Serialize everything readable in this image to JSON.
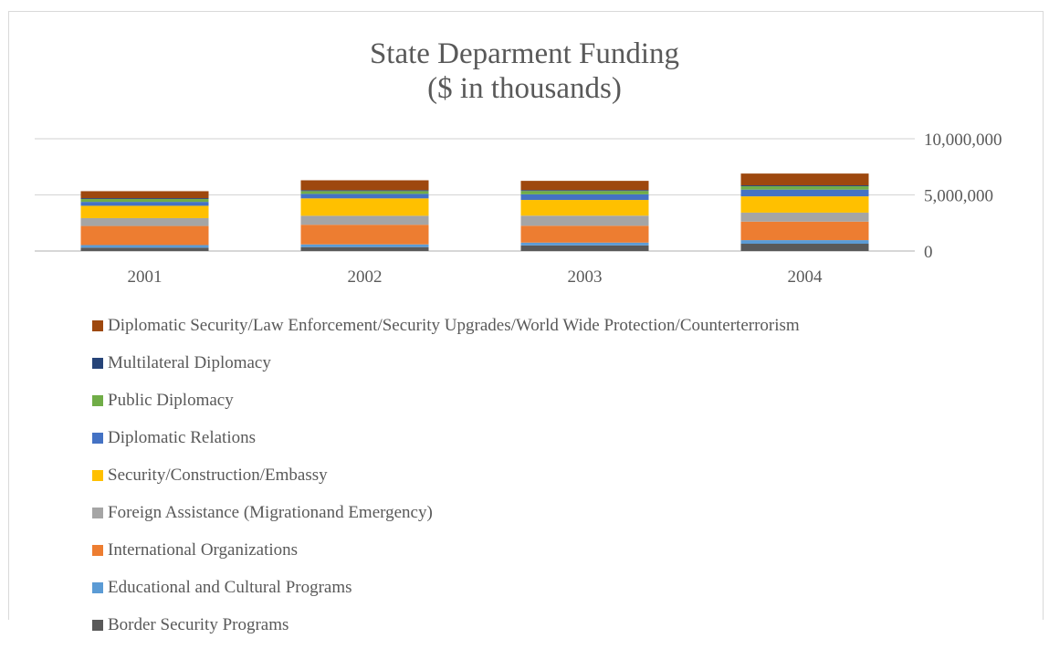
{
  "chart_data": {
    "type": "bar",
    "stacked": true,
    "title": [
      "State Deparment Funding",
      "($ in thousands)"
    ],
    "categories": [
      "2001",
      "2002",
      "2003",
      "2004"
    ],
    "y_axis_position": "right",
    "ylim": [
      0,
      10000000
    ],
    "yticks": [
      0,
      5000000,
      10000000
    ],
    "ytick_labels": [
      "0",
      "5,000,000",
      "10,000,000"
    ],
    "grid": true,
    "legend_position": "bottom",
    "series": [
      {
        "name": "Border Security Programs",
        "color": "#595959",
        "values": [
          300000,
          350000,
          500000,
          650000
        ]
      },
      {
        "name": "Educational and Cultural Programs",
        "color": "#5b9bd5",
        "values": [
          230000,
          240000,
          250000,
          320000
        ]
      },
      {
        "name": "International Organizations",
        "color": "#ed7d31",
        "values": [
          1700000,
          1750000,
          1500000,
          1650000
        ]
      },
      {
        "name": "Foreign Assistance (Migrationand Emergency)",
        "color": "#a5a5a5",
        "values": [
          700000,
          800000,
          900000,
          800000
        ]
      },
      {
        "name": "Security/Construction/Embassy",
        "color": "#ffc000",
        "values": [
          1100000,
          1550000,
          1400000,
          1450000
        ]
      },
      {
        "name": "Diplomatic Relations",
        "color": "#4472c4",
        "values": [
          350000,
          400000,
          500000,
          600000
        ]
      },
      {
        "name": "Public Diplomacy",
        "color": "#70ad47",
        "values": [
          250000,
          250000,
          300000,
          300000
        ]
      },
      {
        "name": "Multilateral Diplomacy",
        "color": "#264478",
        "values": [
          80000,
          80000,
          80000,
          80000
        ]
      },
      {
        "name": "Diplomatic Security/Law Enforcement/Security Upgrades/World Wide Protection/Counterterrorism",
        "color": "#9e480e",
        "values": [
          620000,
          880000,
          820000,
          1050000
        ]
      }
    ]
  }
}
